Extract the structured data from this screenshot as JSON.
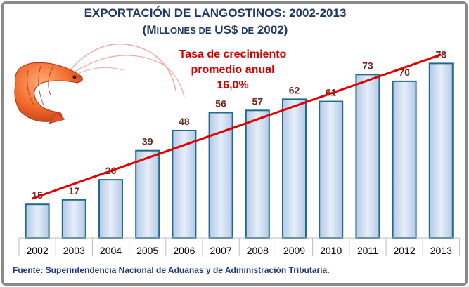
{
  "chart_data": {
    "type": "bar",
    "title": "EXPORTACIÓN DE LANGOSTINOS: 2002-2013",
    "subtitle": {
      "open": "(",
      "cap1": "M",
      "small1": "ILLONES DE",
      "mid": " US$ ",
      "small2": "DE",
      "close": " 2002)"
    },
    "categories": [
      "2002",
      "2003",
      "2004",
      "2005",
      "2006",
      "2007",
      "2008",
      "2009",
      "2010",
      "2011",
      "2012",
      "2013"
    ],
    "values": [
      15,
      17,
      26,
      39,
      48,
      56,
      57,
      62,
      61,
      73,
      70,
      78
    ],
    "ylim": [
      0,
      80
    ],
    "grid": false,
    "legend": "none",
    "trendline": {
      "type": "linear",
      "color": "#e00000"
    },
    "annotation": [
      "Tasa de crecimiento",
      "promedio anual",
      "16,0%"
    ],
    "source": "Fuente: Superintendencia Nacional de Aduanas y de Administración Tributaria.",
    "colors": {
      "bar_fill_light": "#e6eef9",
      "bar_fill_dark": "#b4c9e8",
      "bar_stroke": "#1f6b8a",
      "value_label": "#6b2b22",
      "title": "#1f3864",
      "annotation": "#d40000",
      "source": "#1f3880"
    }
  },
  "decoration": {
    "image": "shrimp-illustration"
  }
}
